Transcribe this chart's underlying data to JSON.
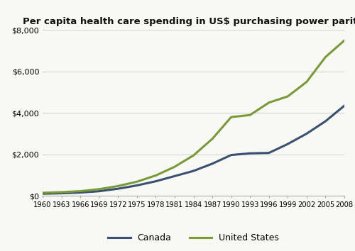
{
  "title": "Per capita health care spending in US$ purchasing power parity",
  "years": [
    1960,
    1963,
    1966,
    1969,
    1972,
    1975,
    1978,
    1981,
    1984,
    1987,
    1990,
    1993,
    1996,
    1999,
    2002,
    2005,
    2008
  ],
  "canada": [
    100,
    120,
    155,
    220,
    340,
    500,
    700,
    950,
    1200,
    1550,
    1970,
    2050,
    2070,
    2500,
    3000,
    3600,
    4350
  ],
  "usa": [
    145,
    175,
    225,
    320,
    470,
    680,
    980,
    1400,
    1950,
    2750,
    3800,
    3900,
    4500,
    4800,
    5500,
    6700,
    7500
  ],
  "canada_color": "#3a5070",
  "usa_color": "#7a9a3a",
  "background_color": "#f8f8f4",
  "ylim": [
    0,
    8000
  ],
  "yticks": [
    0,
    2000,
    4000,
    6000,
    8000
  ],
  "legend_labels": [
    "Canada",
    "United States"
  ],
  "linewidth": 2.2
}
